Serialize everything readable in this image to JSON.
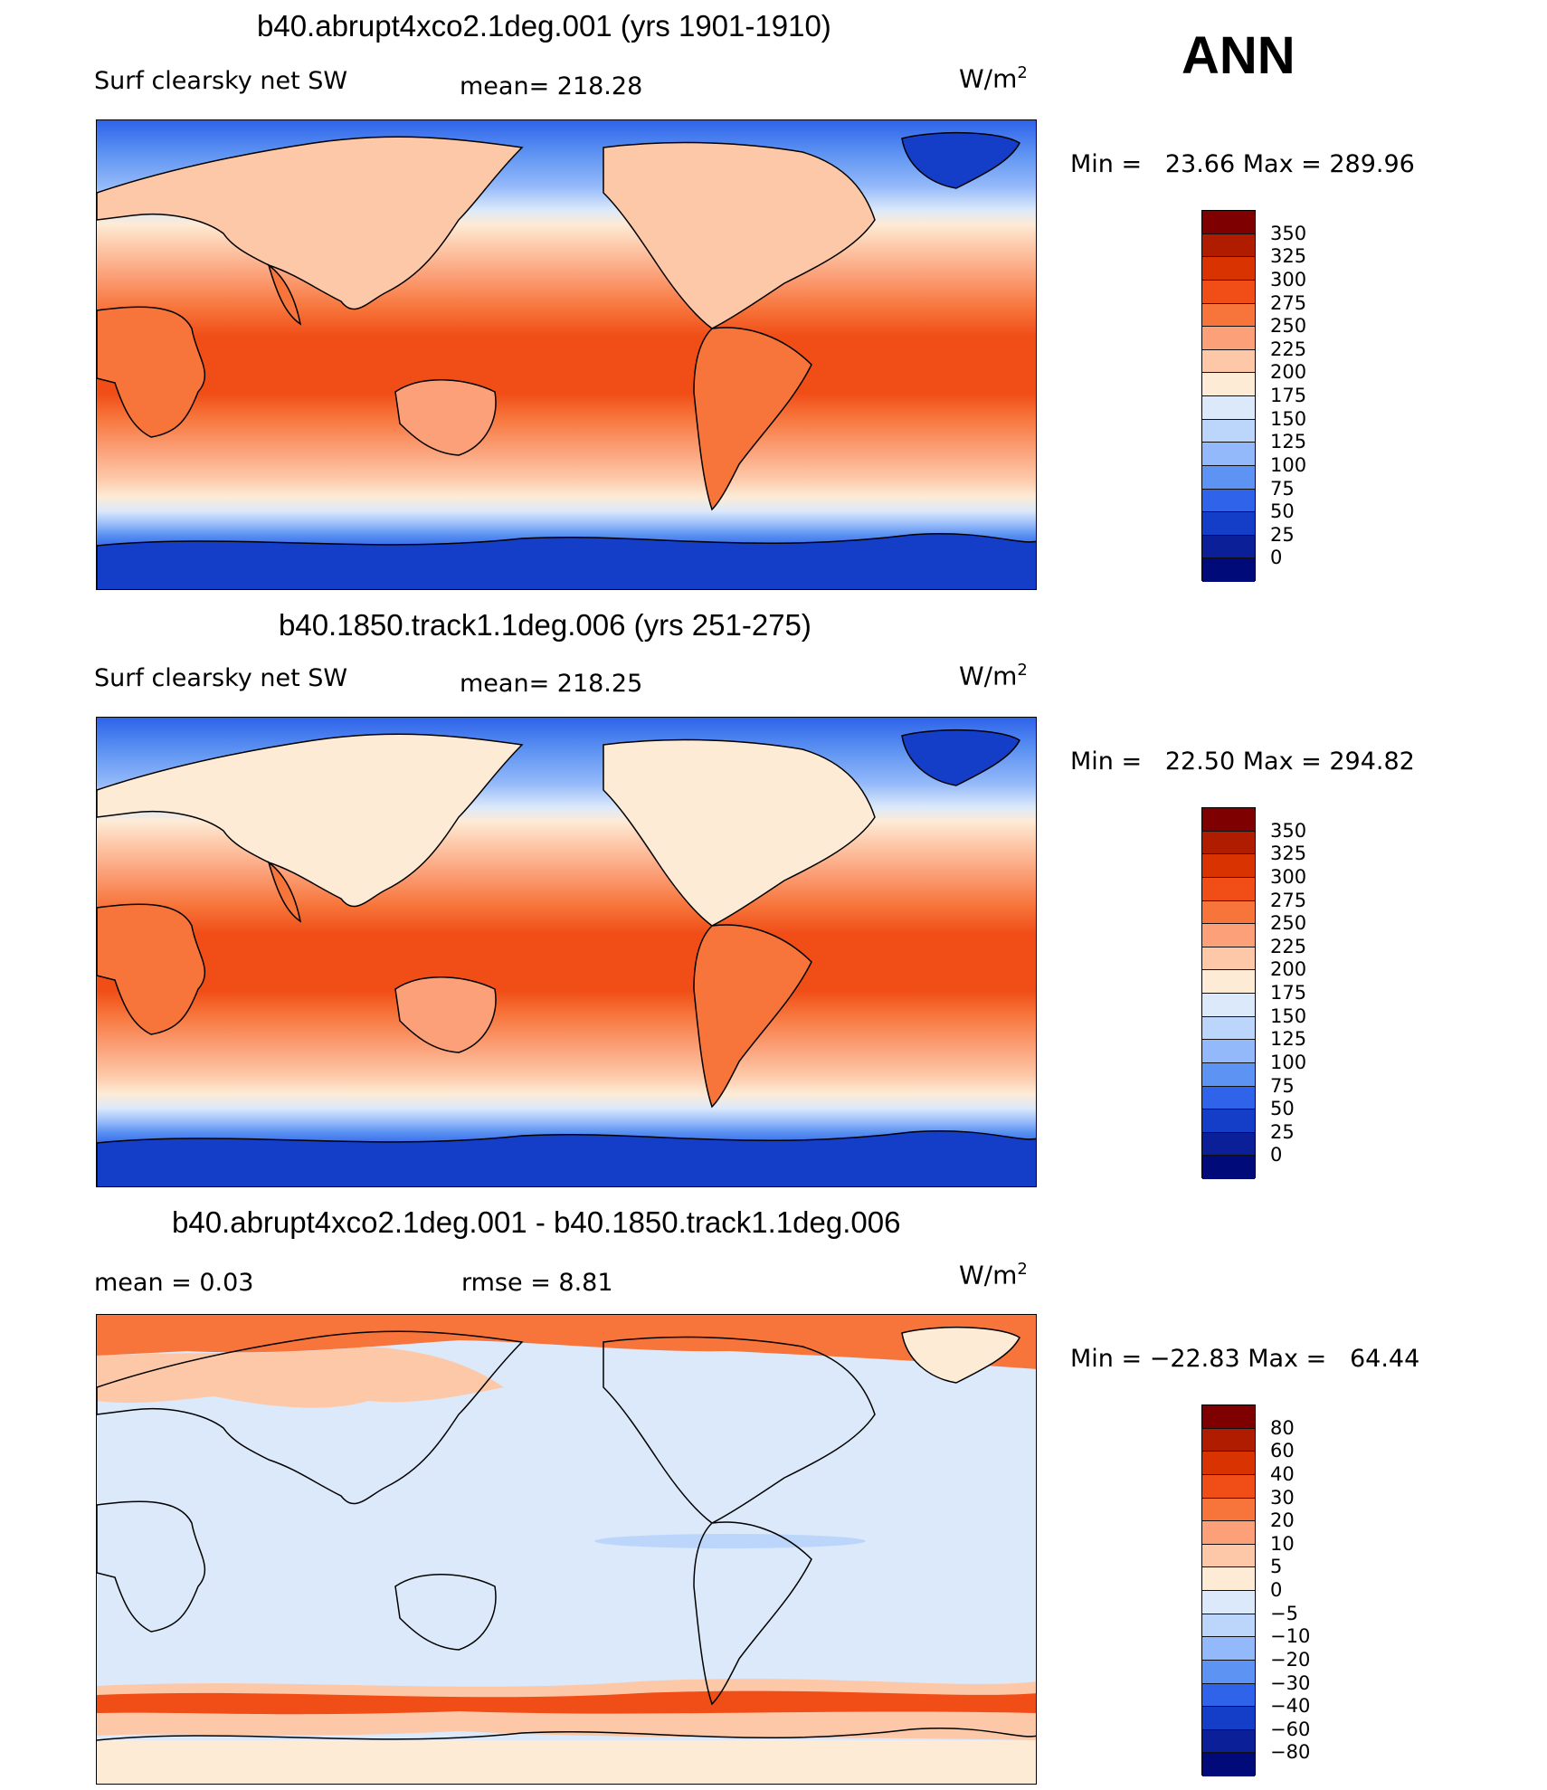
{
  "season": "ANN",
  "panels": [
    {
      "title": "b40.abrupt4xco2.1deg.001 (yrs 1901-1910)",
      "variable": "Surf clearsky net SW",
      "mean_text": "mean= 218.28",
      "units": "W/m",
      "units_exp": "2",
      "minmax": "Min =   23.66 Max = 289.96",
      "colorbar": {
        "labels": [
          "350",
          "325",
          "300",
          "275",
          "250",
          "225",
          "200",
          "175",
          "150",
          "125",
          "100",
          "75",
          "50",
          "25",
          "0"
        ],
        "colors": [
          "#7f0000",
          "#b01c00",
          "#d83300",
          "#f04d17",
          "#f7743a",
          "#fba078",
          "#fdc8a8",
          "#fdebd6",
          "#dbe9fa",
          "#bcd6fb",
          "#94b9fa",
          "#5d93f2",
          "#2e63ea",
          "#143ec7",
          "#0a1f98",
          "#000a78"
        ]
      }
    },
    {
      "title": "b40.1850.track1.1deg.006 (yrs 251-275)",
      "variable": "Surf clearsky net SW",
      "mean_text": "mean= 218.25",
      "units": "W/m",
      "units_exp": "2",
      "minmax": "Min =   22.50 Max = 294.82",
      "colorbar": {
        "labels": [
          "350",
          "325",
          "300",
          "275",
          "250",
          "225",
          "200",
          "175",
          "150",
          "125",
          "100",
          "75",
          "50",
          "25",
          "0"
        ],
        "colors": [
          "#7f0000",
          "#b01c00",
          "#d83300",
          "#f04d17",
          "#f7743a",
          "#fba078",
          "#fdc8a8",
          "#fdebd6",
          "#dbe9fa",
          "#bcd6fb",
          "#94b9fa",
          "#5d93f2",
          "#2e63ea",
          "#143ec7",
          "#0a1f98",
          "#000a78"
        ]
      }
    },
    {
      "title": "b40.abrupt4xco2.1deg.001 - b40.1850.track1.1deg.006",
      "mean_text": "mean =     0.03",
      "rmse_text": "rmse =     8.81",
      "units": "W/m",
      "units_exp": "2",
      "minmax": "Min = −22.83 Max =   64.44",
      "colorbar": {
        "labels": [
          "80",
          "60",
          "40",
          "30",
          "20",
          "10",
          "5",
          "0",
          "−5",
          "−10",
          "−20",
          "−30",
          "−40",
          "−60",
          "−80"
        ],
        "colors": [
          "#7f0000",
          "#b01c00",
          "#d83300",
          "#f04d17",
          "#f7743a",
          "#fba078",
          "#fdc8a8",
          "#fdebd6",
          "#dbe9fa",
          "#bcd6fb",
          "#94b9fa",
          "#5d93f2",
          "#2e63ea",
          "#143ec7",
          "#0a1f98",
          "#000a78"
        ]
      }
    }
  ]
}
